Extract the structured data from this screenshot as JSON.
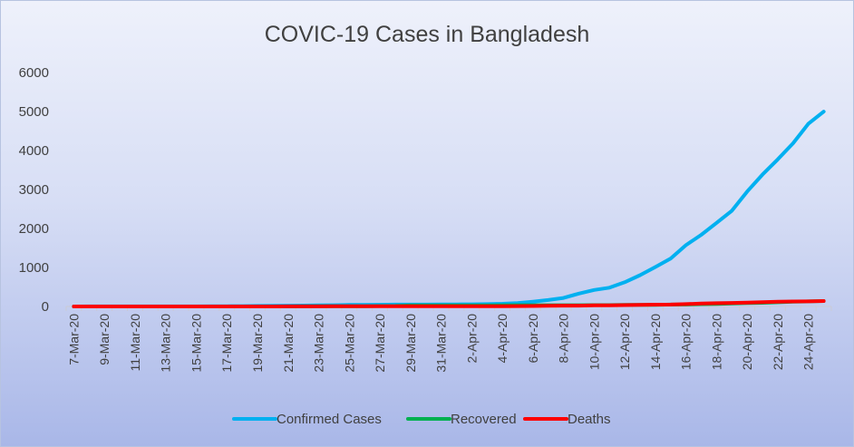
{
  "chart_data": {
    "type": "line",
    "title": "COVIC-19 Cases in Bangladesh",
    "xlabel": "",
    "ylabel": "",
    "ylim": [
      0,
      6000
    ],
    "y_ticks": [
      0,
      1000,
      2000,
      3000,
      4000,
      5000,
      6000
    ],
    "grid": false,
    "legend_position": "bottom",
    "x": [
      "7-Mar-20",
      "8-Mar-20",
      "9-Mar-20",
      "10-Mar-20",
      "11-Mar-20",
      "12-Mar-20",
      "13-Mar-20",
      "14-Mar-20",
      "15-Mar-20",
      "16-Mar-20",
      "17-Mar-20",
      "18-Mar-20",
      "19-Mar-20",
      "20-Mar-20",
      "21-Mar-20",
      "22-Mar-20",
      "23-Mar-20",
      "24-Mar-20",
      "25-Mar-20",
      "26-Mar-20",
      "27-Mar-20",
      "28-Mar-20",
      "29-Mar-20",
      "30-Mar-20",
      "31-Mar-20",
      "1-Apr-20",
      "2-Apr-20",
      "3-Apr-20",
      "4-Apr-20",
      "5-Apr-20",
      "6-Apr-20",
      "7-Apr-20",
      "8-Apr-20",
      "9-Apr-20",
      "10-Apr-20",
      "11-Apr-20",
      "12-Apr-20",
      "13-Apr-20",
      "14-Apr-20",
      "15-Apr-20",
      "16-Apr-20",
      "17-Apr-20",
      "18-Apr-20",
      "19-Apr-20",
      "20-Apr-20",
      "21-Apr-20",
      "22-Apr-20",
      "23-Apr-20",
      "24-Apr-20",
      "25-Apr-20"
    ],
    "x_tick_labels": [
      "7-Mar-20",
      "9-Mar-20",
      "11-Mar-20",
      "13-Mar-20",
      "15-Mar-20",
      "17-Mar-20",
      "19-Mar-20",
      "21-Mar-20",
      "23-Mar-20",
      "25-Mar-20",
      "27-Mar-20",
      "29-Mar-20",
      "31-Mar-20",
      "2-Apr-20",
      "4-Apr-20",
      "6-Apr-20",
      "8-Apr-20",
      "10-Apr-20",
      "12-Apr-20",
      "14-Apr-20",
      "16-Apr-20",
      "18-Apr-20",
      "20-Apr-20",
      "22-Apr-20",
      "24-Apr-20"
    ],
    "series": [
      {
        "name": "Confirmed Cases",
        "color": "#00b0f0",
        "values": [
          0,
          3,
          3,
          3,
          3,
          3,
          3,
          3,
          3,
          5,
          8,
          10,
          14,
          17,
          20,
          24,
          27,
          33,
          39,
          39,
          44,
          48,
          48,
          49,
          51,
          54,
          56,
          61,
          70,
          88,
          123,
          164,
          218,
          330,
          424,
          482,
          621,
          803,
          1012,
          1231,
          1572,
          1838,
          2144,
          2456,
          2948,
          3382,
          3772,
          4186,
          4689,
          4998
        ]
      },
      {
        "name": "Recovered",
        "color": "#00b050",
        "values": [
          0,
          0,
          0,
          0,
          0,
          0,
          0,
          0,
          0,
          0,
          0,
          0,
          0,
          0,
          0,
          3,
          5,
          5,
          5,
          7,
          11,
          15,
          25,
          25,
          25,
          25,
          26,
          26,
          30,
          33,
          33,
          33,
          33,
          33,
          36,
          36,
          39,
          42,
          42,
          49,
          49,
          58,
          66,
          75,
          85,
          92,
          108,
          122,
          130,
          140
        ]
      },
      {
        "name": "Deaths",
        "color": "#ff0000",
        "values": [
          0,
          0,
          0,
          0,
          0,
          0,
          0,
          0,
          0,
          0,
          0,
          1,
          1,
          1,
          2,
          2,
          3,
          4,
          5,
          5,
          5,
          5,
          5,
          5,
          5,
          6,
          6,
          6,
          8,
          9,
          12,
          17,
          20,
          21,
          27,
          30,
          34,
          39,
          46,
          50,
          60,
          75,
          84,
          91,
          101,
          110,
          120,
          127,
          131,
          140
        ]
      }
    ]
  }
}
